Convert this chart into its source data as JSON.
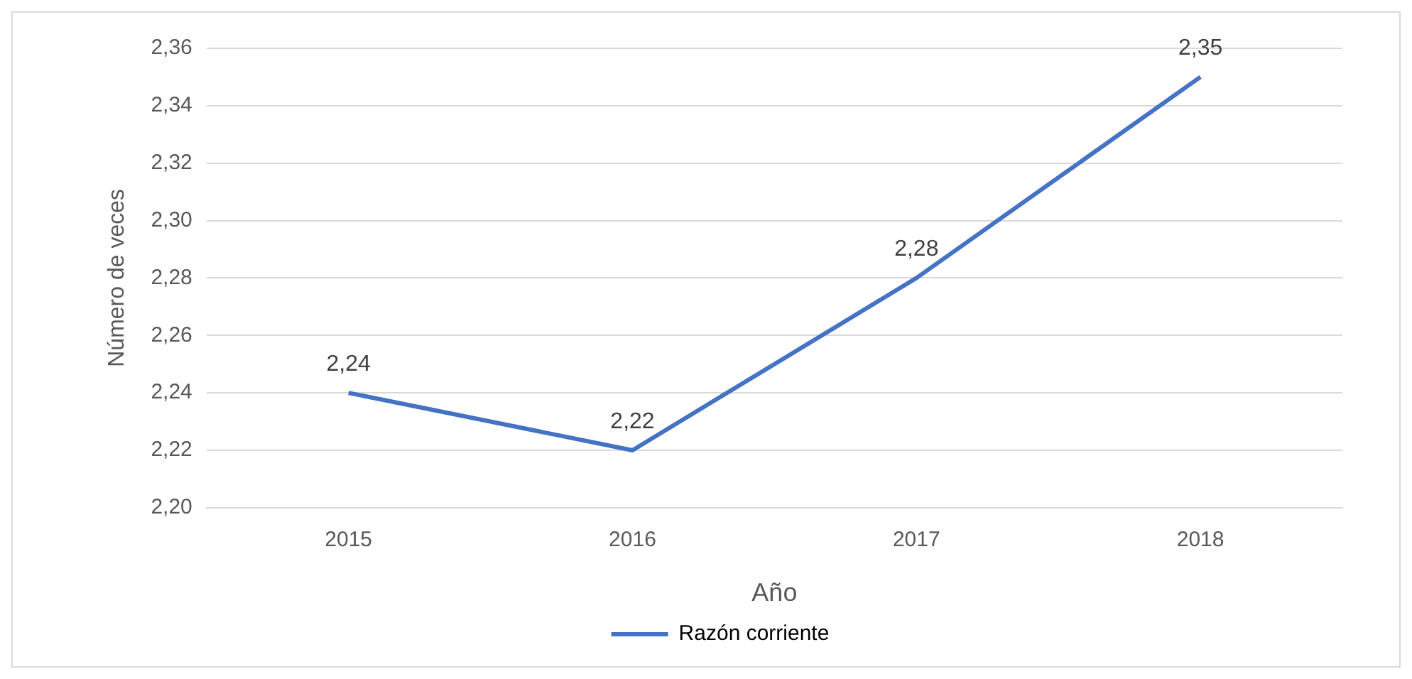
{
  "chart_data": {
    "type": "line",
    "xlabel": "Año",
    "ylabel": "Número de veces",
    "categories": [
      "2015",
      "2016",
      "2017",
      "2018"
    ],
    "series": [
      {
        "name": "Razón corriente",
        "color": "#4472c4",
        "values": [
          2.24,
          2.22,
          2.28,
          2.35
        ],
        "value_labels": [
          "2,24",
          "2,22",
          "2,28",
          "2,35"
        ]
      }
    ],
    "ylim": [
      2.2,
      2.36
    ],
    "yticks": [
      {
        "value": 2.2,
        "label": "2,20"
      },
      {
        "value": 2.22,
        "label": "2,22"
      },
      {
        "value": 2.24,
        "label": "2,24"
      },
      {
        "value": 2.26,
        "label": "2,26"
      },
      {
        "value": 2.28,
        "label": "2,28"
      },
      {
        "value": 2.3,
        "label": "2,30"
      },
      {
        "value": 2.32,
        "label": "2,32"
      },
      {
        "value": 2.34,
        "label": "2,34"
      },
      {
        "value": 2.36,
        "label": "2,36"
      }
    ],
    "grid": "y",
    "legend": "bottom",
    "marker": "none",
    "line_style": "solid"
  }
}
